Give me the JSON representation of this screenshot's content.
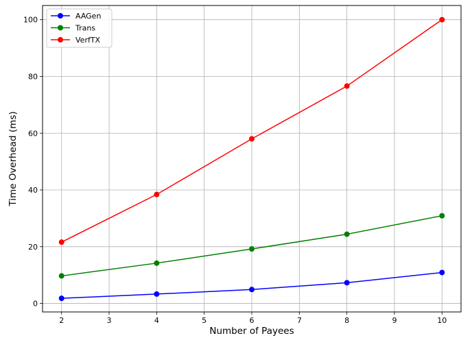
{
  "chart_data": {
    "type": "line",
    "title": "",
    "xlabel": "Number of Payees",
    "ylabel": "Time Overhead (ms)",
    "x": [
      2,
      4,
      6,
      8,
      10
    ],
    "xlim": [
      1.6,
      10.4
    ],
    "ylim": [
      -3,
      105
    ],
    "xticks": [
      2,
      3,
      4,
      5,
      6,
      7,
      8,
      9,
      10
    ],
    "yticks": [
      0,
      20,
      40,
      60,
      80,
      100
    ],
    "grid": true,
    "legend_position": "top-left",
    "series": [
      {
        "name": "AAGen",
        "color": "#0000ff",
        "values": [
          1.8,
          3.3,
          4.9,
          7.3,
          10.9
        ]
      },
      {
        "name": "Trans",
        "color": "#008000",
        "values": [
          9.7,
          14.2,
          19.2,
          24.4,
          30.9
        ]
      },
      {
        "name": "VerfTX",
        "color": "#ff0000",
        "values": [
          21.6,
          38.4,
          58.0,
          76.6,
          100.0
        ]
      }
    ]
  }
}
